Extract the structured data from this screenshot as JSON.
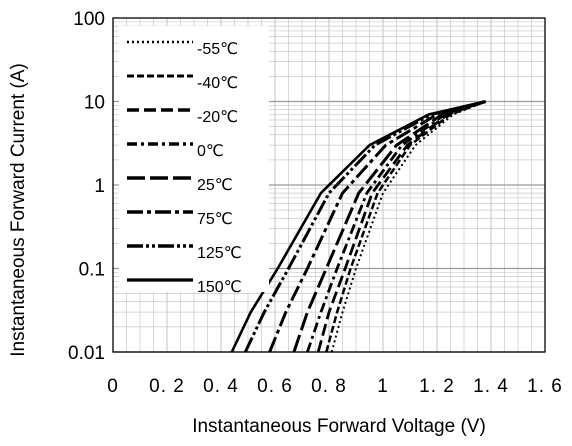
{
  "chart_data": {
    "type": "line",
    "xlabel": "Instantaneous Forward Voltage (V)",
    "ylabel": "Instantaneous Forward Current (A)",
    "xlim": [
      0,
      1.6
    ],
    "ylim": [
      0.01,
      100
    ],
    "y_scale": "log",
    "grid": true,
    "legend_position": "left inside plot",
    "x_ticks": [
      "0",
      "0. 2",
      "0. 4",
      "0. 6",
      "0. 8",
      "1",
      "1. 2",
      "1. 4",
      "1. 6"
    ],
    "y_ticks": [
      "0.01",
      "0.1",
      "1",
      "10",
      "100"
    ],
    "series": [
      {
        "name": "-55℃",
        "dash": "dotted",
        "x": [
          0.81,
          0.85,
          0.9,
          1.0,
          1.12,
          1.26,
          1.38
        ],
        "y": [
          0.01,
          0.03,
          0.1,
          0.8,
          3.0,
          7.0,
          10.0
        ]
      },
      {
        "name": "-40℃",
        "dash": "short-dash",
        "x": [
          0.79,
          0.83,
          0.88,
          0.98,
          1.1,
          1.25,
          1.38
        ],
        "y": [
          0.01,
          0.03,
          0.1,
          0.8,
          3.0,
          7.0,
          10.0
        ]
      },
      {
        "name": "-20℃",
        "dash": "dash",
        "x": [
          0.76,
          0.8,
          0.86,
          0.96,
          1.09,
          1.24,
          1.38
        ],
        "y": [
          0.01,
          0.03,
          0.1,
          0.8,
          3.0,
          7.0,
          10.0
        ]
      },
      {
        "name": "0℃",
        "dash": "dash-dot",
        "x": [
          0.72,
          0.77,
          0.83,
          0.94,
          1.07,
          1.23,
          1.38
        ],
        "y": [
          0.01,
          0.03,
          0.1,
          0.8,
          3.0,
          7.0,
          10.0
        ]
      },
      {
        "name": "25℃",
        "dash": "long-dash",
        "x": [
          0.67,
          0.72,
          0.79,
          0.91,
          1.05,
          1.22,
          1.38
        ],
        "y": [
          0.01,
          0.03,
          0.1,
          0.8,
          3.0,
          7.0,
          10.0
        ]
      },
      {
        "name": "75℃",
        "dash": "long-dash-dot",
        "x": [
          0.58,
          0.64,
          0.72,
          0.85,
          1.01,
          1.2,
          1.38
        ],
        "y": [
          0.01,
          0.03,
          0.1,
          0.8,
          3.0,
          7.0,
          10.0
        ]
      },
      {
        "name": "125℃",
        "dash": "long-dash-dot-dot",
        "x": [
          0.49,
          0.56,
          0.65,
          0.8,
          0.97,
          1.18,
          1.38
        ],
        "y": [
          0.01,
          0.03,
          0.1,
          0.8,
          3.0,
          7.0,
          10.0
        ]
      },
      {
        "name": "150℃",
        "dash": "solid",
        "x": [
          0.44,
          0.51,
          0.61,
          0.77,
          0.95,
          1.17,
          1.38
        ],
        "y": [
          0.01,
          0.03,
          0.1,
          0.8,
          3.0,
          7.0,
          10.0
        ]
      }
    ]
  }
}
